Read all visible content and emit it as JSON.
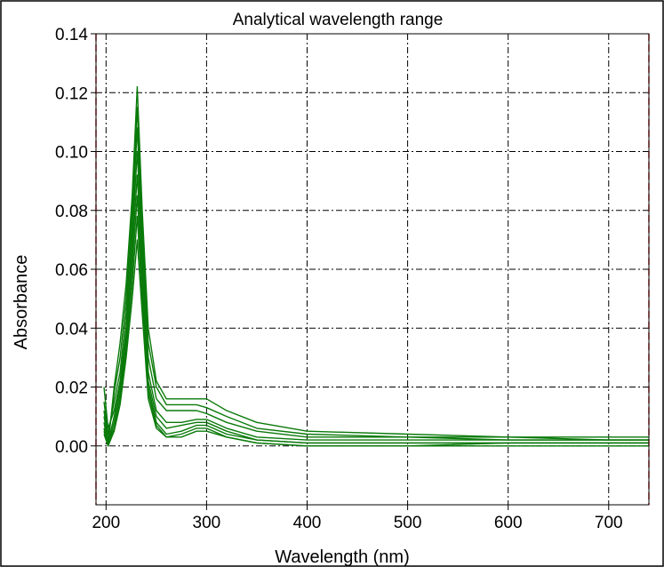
{
  "chart_data": {
    "type": "line",
    "title": "Analytical wavelength range",
    "xlabel": "Wavelength (nm)",
    "ylabel": "Absorbance",
    "xlim": [
      190,
      740
    ],
    "ylim": [
      -0.02,
      0.14
    ],
    "xticks": [
      200,
      300,
      400,
      500,
      600,
      700
    ],
    "xtick_labels": [
      "200",
      "300",
      "400",
      "500",
      "600",
      "700"
    ],
    "yticks": [
      0.0,
      0.02,
      0.04,
      0.06,
      0.08,
      0.1,
      0.12,
      0.14
    ],
    "ytick_labels": [
      "0.00",
      "0.02",
      "0.04",
      "0.06",
      "0.08",
      "0.10",
      "0.12",
      "0.14"
    ],
    "grid": true,
    "range_markers": [
      190,
      740
    ],
    "colors": {
      "series": "#0a7a0a",
      "grid": "#000000",
      "range_marker": "#e02020"
    },
    "series": [
      {
        "x": [
          198,
          202,
          208,
          214,
          220,
          226,
          231,
          236,
          242,
          250,
          260,
          275,
          290,
          300,
          320,
          350,
          400,
          500,
          600,
          700,
          740
        ],
        "y": [
          0.005,
          0.0,
          0.02,
          0.035,
          0.055,
          0.085,
          0.122,
          0.08,
          0.04,
          0.022,
          0.016,
          0.016,
          0.016,
          0.016,
          0.012,
          0.008,
          0.005,
          0.004,
          0.003,
          0.003,
          0.003
        ]
      },
      {
        "x": [
          198,
          202,
          208,
          214,
          220,
          226,
          231,
          236,
          242,
          250,
          260,
          275,
          290,
          300,
          320,
          350,
          400,
          500,
          600,
          700,
          740
        ],
        "y": [
          0.01,
          0.002,
          0.018,
          0.03,
          0.05,
          0.08,
          0.115,
          0.075,
          0.035,
          0.02,
          0.014,
          0.014,
          0.014,
          0.013,
          0.01,
          0.006,
          0.004,
          0.003,
          0.003,
          0.002,
          0.002
        ]
      },
      {
        "x": [
          198,
          202,
          208,
          214,
          220,
          226,
          231,
          236,
          242,
          250,
          260,
          275,
          290,
          300,
          320,
          350,
          400,
          500,
          600,
          700,
          740
        ],
        "y": [
          0.015,
          0.004,
          0.015,
          0.025,
          0.045,
          0.075,
          0.108,
          0.07,
          0.03,
          0.016,
          0.012,
          0.012,
          0.012,
          0.011,
          0.008,
          0.005,
          0.003,
          0.003,
          0.002,
          0.002,
          0.002
        ]
      },
      {
        "x": [
          198,
          202,
          208,
          214,
          220,
          226,
          231,
          236,
          242,
          250,
          260,
          275,
          290,
          300,
          320,
          350,
          400,
          500,
          600,
          700,
          740
        ],
        "y": [
          0.02,
          0.006,
          0.012,
          0.022,
          0.04,
          0.07,
          0.1,
          0.065,
          0.025,
          0.012,
          0.008,
          0.008,
          0.009,
          0.009,
          0.006,
          0.003,
          0.002,
          0.002,
          0.002,
          0.002,
          0.002
        ]
      },
      {
        "x": [
          198,
          202,
          208,
          214,
          220,
          226,
          231,
          236,
          242,
          250,
          260,
          275,
          290,
          300,
          320,
          350,
          400,
          500,
          600,
          700,
          740
        ],
        "y": [
          0.012,
          0.001,
          0.01,
          0.02,
          0.038,
          0.065,
          0.092,
          0.06,
          0.022,
          0.01,
          0.006,
          0.007,
          0.008,
          0.008,
          0.005,
          0.002,
          0.001,
          0.001,
          0.001,
          0.001,
          0.001
        ]
      },
      {
        "x": [
          198,
          202,
          208,
          214,
          220,
          226,
          231,
          236,
          242,
          250,
          260,
          275,
          290,
          300,
          320,
          350,
          400,
          500,
          600,
          700,
          740
        ],
        "y": [
          0.008,
          0.0,
          0.008,
          0.018,
          0.035,
          0.06,
          0.085,
          0.055,
          0.02,
          0.008,
          0.004,
          0.005,
          0.007,
          0.007,
          0.004,
          0.002,
          0.001,
          0.001,
          0.001,
          0.001,
          0.001
        ]
      },
      {
        "x": [
          198,
          202,
          208,
          214,
          220,
          226,
          231,
          236,
          242,
          250,
          260,
          275,
          290,
          300,
          320,
          350,
          400,
          500,
          600,
          700,
          740
        ],
        "y": [
          0.006,
          0.0,
          0.006,
          0.016,
          0.032,
          0.055,
          0.078,
          0.05,
          0.018,
          0.007,
          0.003,
          0.004,
          0.006,
          0.006,
          0.003,
          0.001,
          0.0,
          0.0,
          0.001,
          0.001,
          0.001
        ]
      },
      {
        "x": [
          198,
          202,
          208,
          214,
          220,
          226,
          231,
          236,
          242,
          250,
          260,
          275,
          290,
          300,
          320,
          350,
          400,
          500,
          600,
          700,
          740
        ],
        "y": [
          0.004,
          0.0,
          0.005,
          0.014,
          0.03,
          0.05,
          0.07,
          0.045,
          0.016,
          0.006,
          0.003,
          0.003,
          0.005,
          0.005,
          0.003,
          0.001,
          0.0,
          0.0,
          0.0,
          0.0,
          0.0
        ]
      }
    ]
  }
}
